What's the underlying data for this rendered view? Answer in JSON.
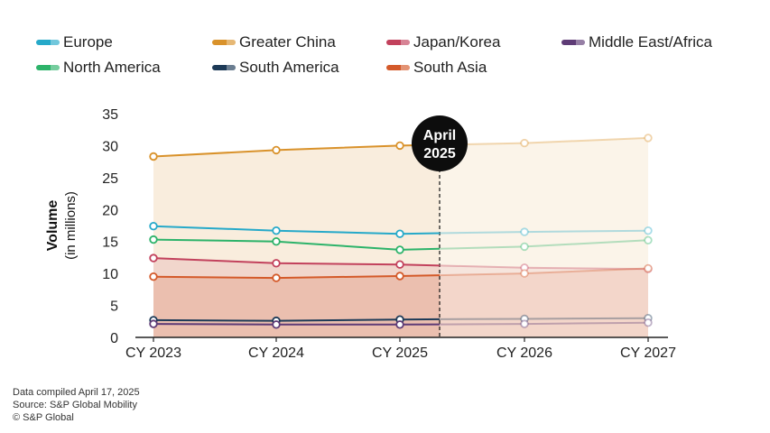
{
  "legend": [
    {
      "label": "Europe",
      "color": "#26a9c9"
    },
    {
      "label": "Greater China",
      "color": "#d9922b"
    },
    {
      "label": "Japan/Korea",
      "color": "#c2415c"
    },
    {
      "label": "Middle East/Africa",
      "color": "#5e3b76"
    },
    {
      "label": "North America",
      "color": "#2db36a"
    },
    {
      "label": "South America",
      "color": "#1d3a57"
    },
    {
      "label": "South Asia",
      "color": "#d45a2a"
    }
  ],
  "marker": {
    "line1": "April",
    "line2": "2025"
  },
  "footnotes": {
    "line1": "Data compiled April 17, 2025",
    "line2": "Source: S&P Global Mobility",
    "line3": "© S&P Global"
  },
  "chart_data": {
    "type": "line",
    "ylabel": "Volume",
    "ylabel_sub": "(in millions)",
    "x": [
      "CY 2023",
      "CY 2024",
      "CY 2025",
      "CY 2026",
      "CY 2027"
    ],
    "ylim": [
      0,
      35
    ],
    "yticks": [
      0,
      5,
      10,
      15,
      20,
      25,
      30,
      35
    ],
    "forecast_boundary": "April 2025",
    "series": [
      {
        "name": "Greater China",
        "values": [
          28.3,
          29.3,
          30.0,
          30.4,
          31.2
        ]
      },
      {
        "name": "Europe",
        "values": [
          17.4,
          16.7,
          16.2,
          16.5,
          16.7
        ]
      },
      {
        "name": "North America",
        "values": [
          15.3,
          15.0,
          13.7,
          14.2,
          15.2
        ]
      },
      {
        "name": "Japan/Korea",
        "values": [
          12.4,
          11.6,
          11.4,
          10.9,
          10.7
        ]
      },
      {
        "name": "South Asia",
        "values": [
          9.5,
          9.3,
          9.6,
          10.0,
          10.8
        ]
      },
      {
        "name": "South America",
        "values": [
          2.7,
          2.6,
          2.8,
          2.9,
          3.0
        ]
      },
      {
        "name": "Middle East/Africa",
        "values": [
          2.1,
          2.0,
          2.0,
          2.1,
          2.3
        ]
      }
    ]
  }
}
